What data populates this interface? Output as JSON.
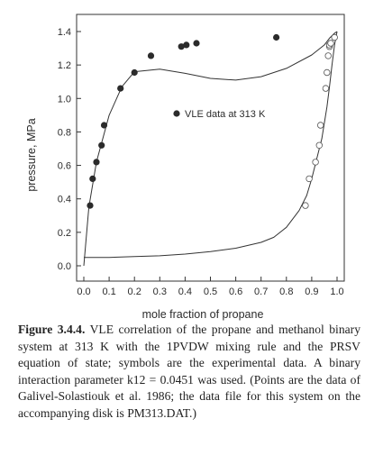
{
  "chart_data": {
    "type": "scatter",
    "xlabel": "mole fraction of propane",
    "ylabel": "pressure, MPa",
    "xlim": [
      0,
      1.0
    ],
    "ylim": [
      0,
      1.4
    ],
    "x_ticks": [
      "0.0",
      "0.1",
      "0.2",
      "0.3",
      "0.4",
      "0.5",
      "0.6",
      "0.7",
      "0.8",
      "0.9",
      "1.0"
    ],
    "y_ticks": [
      "0.0",
      "0.2",
      "0.4",
      "0.6",
      "0.8",
      "1.0",
      "1.2",
      "1.4"
    ],
    "legend": {
      "label": "VLE data at 313 K",
      "placement": "center-right"
    },
    "series": [
      {
        "marker": "filled-circle",
        "points": [
          [
            0.025,
            0.36
          ],
          [
            0.035,
            0.52
          ],
          [
            0.05,
            0.62
          ],
          [
            0.07,
            0.72
          ],
          [
            0.08,
            0.84
          ],
          [
            0.145,
            1.06
          ],
          [
            0.2,
            1.155
          ],
          [
            0.265,
            1.255
          ],
          [
            0.385,
            1.31
          ],
          [
            0.405,
            1.32
          ],
          [
            0.445,
            1.33
          ],
          [
            0.76,
            1.365
          ]
        ]
      },
      {
        "marker": "open-circle",
        "points": [
          [
            0.875,
            0.36
          ],
          [
            0.89,
            0.52
          ],
          [
            0.915,
            0.62
          ],
          [
            0.93,
            0.72
          ],
          [
            0.935,
            0.84
          ],
          [
            0.955,
            1.06
          ],
          [
            0.96,
            1.155
          ],
          [
            0.965,
            1.255
          ],
          [
            0.97,
            1.31
          ],
          [
            0.97,
            1.32
          ],
          [
            0.975,
            1.33
          ],
          [
            0.99,
            1.365
          ]
        ]
      },
      {
        "line": "solid",
        "points": [
          [
            0.0,
            0.0
          ],
          [
            0.02,
            0.35
          ],
          [
            0.05,
            0.62
          ],
          [
            0.1,
            0.9
          ],
          [
            0.15,
            1.07
          ],
          [
            0.2,
            1.16
          ],
          [
            0.3,
            1.175
          ],
          [
            0.4,
            1.15
          ],
          [
            0.5,
            1.12
          ],
          [
            0.6,
            1.11
          ],
          [
            0.7,
            1.13
          ],
          [
            0.8,
            1.18
          ],
          [
            0.9,
            1.26
          ],
          [
            0.95,
            1.32
          ],
          [
            0.97,
            1.36
          ],
          [
            0.99,
            1.39
          ],
          [
            1.0,
            1.4
          ]
        ]
      },
      {
        "line": "solid",
        "points": [
          [
            0.0,
            0.05
          ],
          [
            0.1,
            0.05
          ],
          [
            0.2,
            0.055
          ],
          [
            0.3,
            0.06
          ],
          [
            0.4,
            0.07
          ],
          [
            0.5,
            0.085
          ],
          [
            0.6,
            0.105
          ],
          [
            0.7,
            0.14
          ],
          [
            0.75,
            0.17
          ],
          [
            0.8,
            0.23
          ],
          [
            0.85,
            0.33
          ],
          [
            0.88,
            0.42
          ],
          [
            0.9,
            0.52
          ],
          [
            0.92,
            0.64
          ],
          [
            0.94,
            0.76
          ],
          [
            0.96,
            0.95
          ],
          [
            0.97,
            1.07
          ],
          [
            0.98,
            1.2
          ],
          [
            0.99,
            1.32
          ],
          [
            1.0,
            1.4
          ]
        ]
      }
    ]
  },
  "caption": {
    "label": "Figure 3.4.4.",
    "text": " VLE correlation of the propane and methanol binary system at 313 K with the 1PVDW mixing rule and the PRSV equation of state; symbols are the experimental data. A binary interaction parameter k12 = 0.0451 was used. (Points are the data of Galivel-Solastiouk et al. 1986; the data file for this system on the accompanying disk is PM313.DAT.)"
  }
}
